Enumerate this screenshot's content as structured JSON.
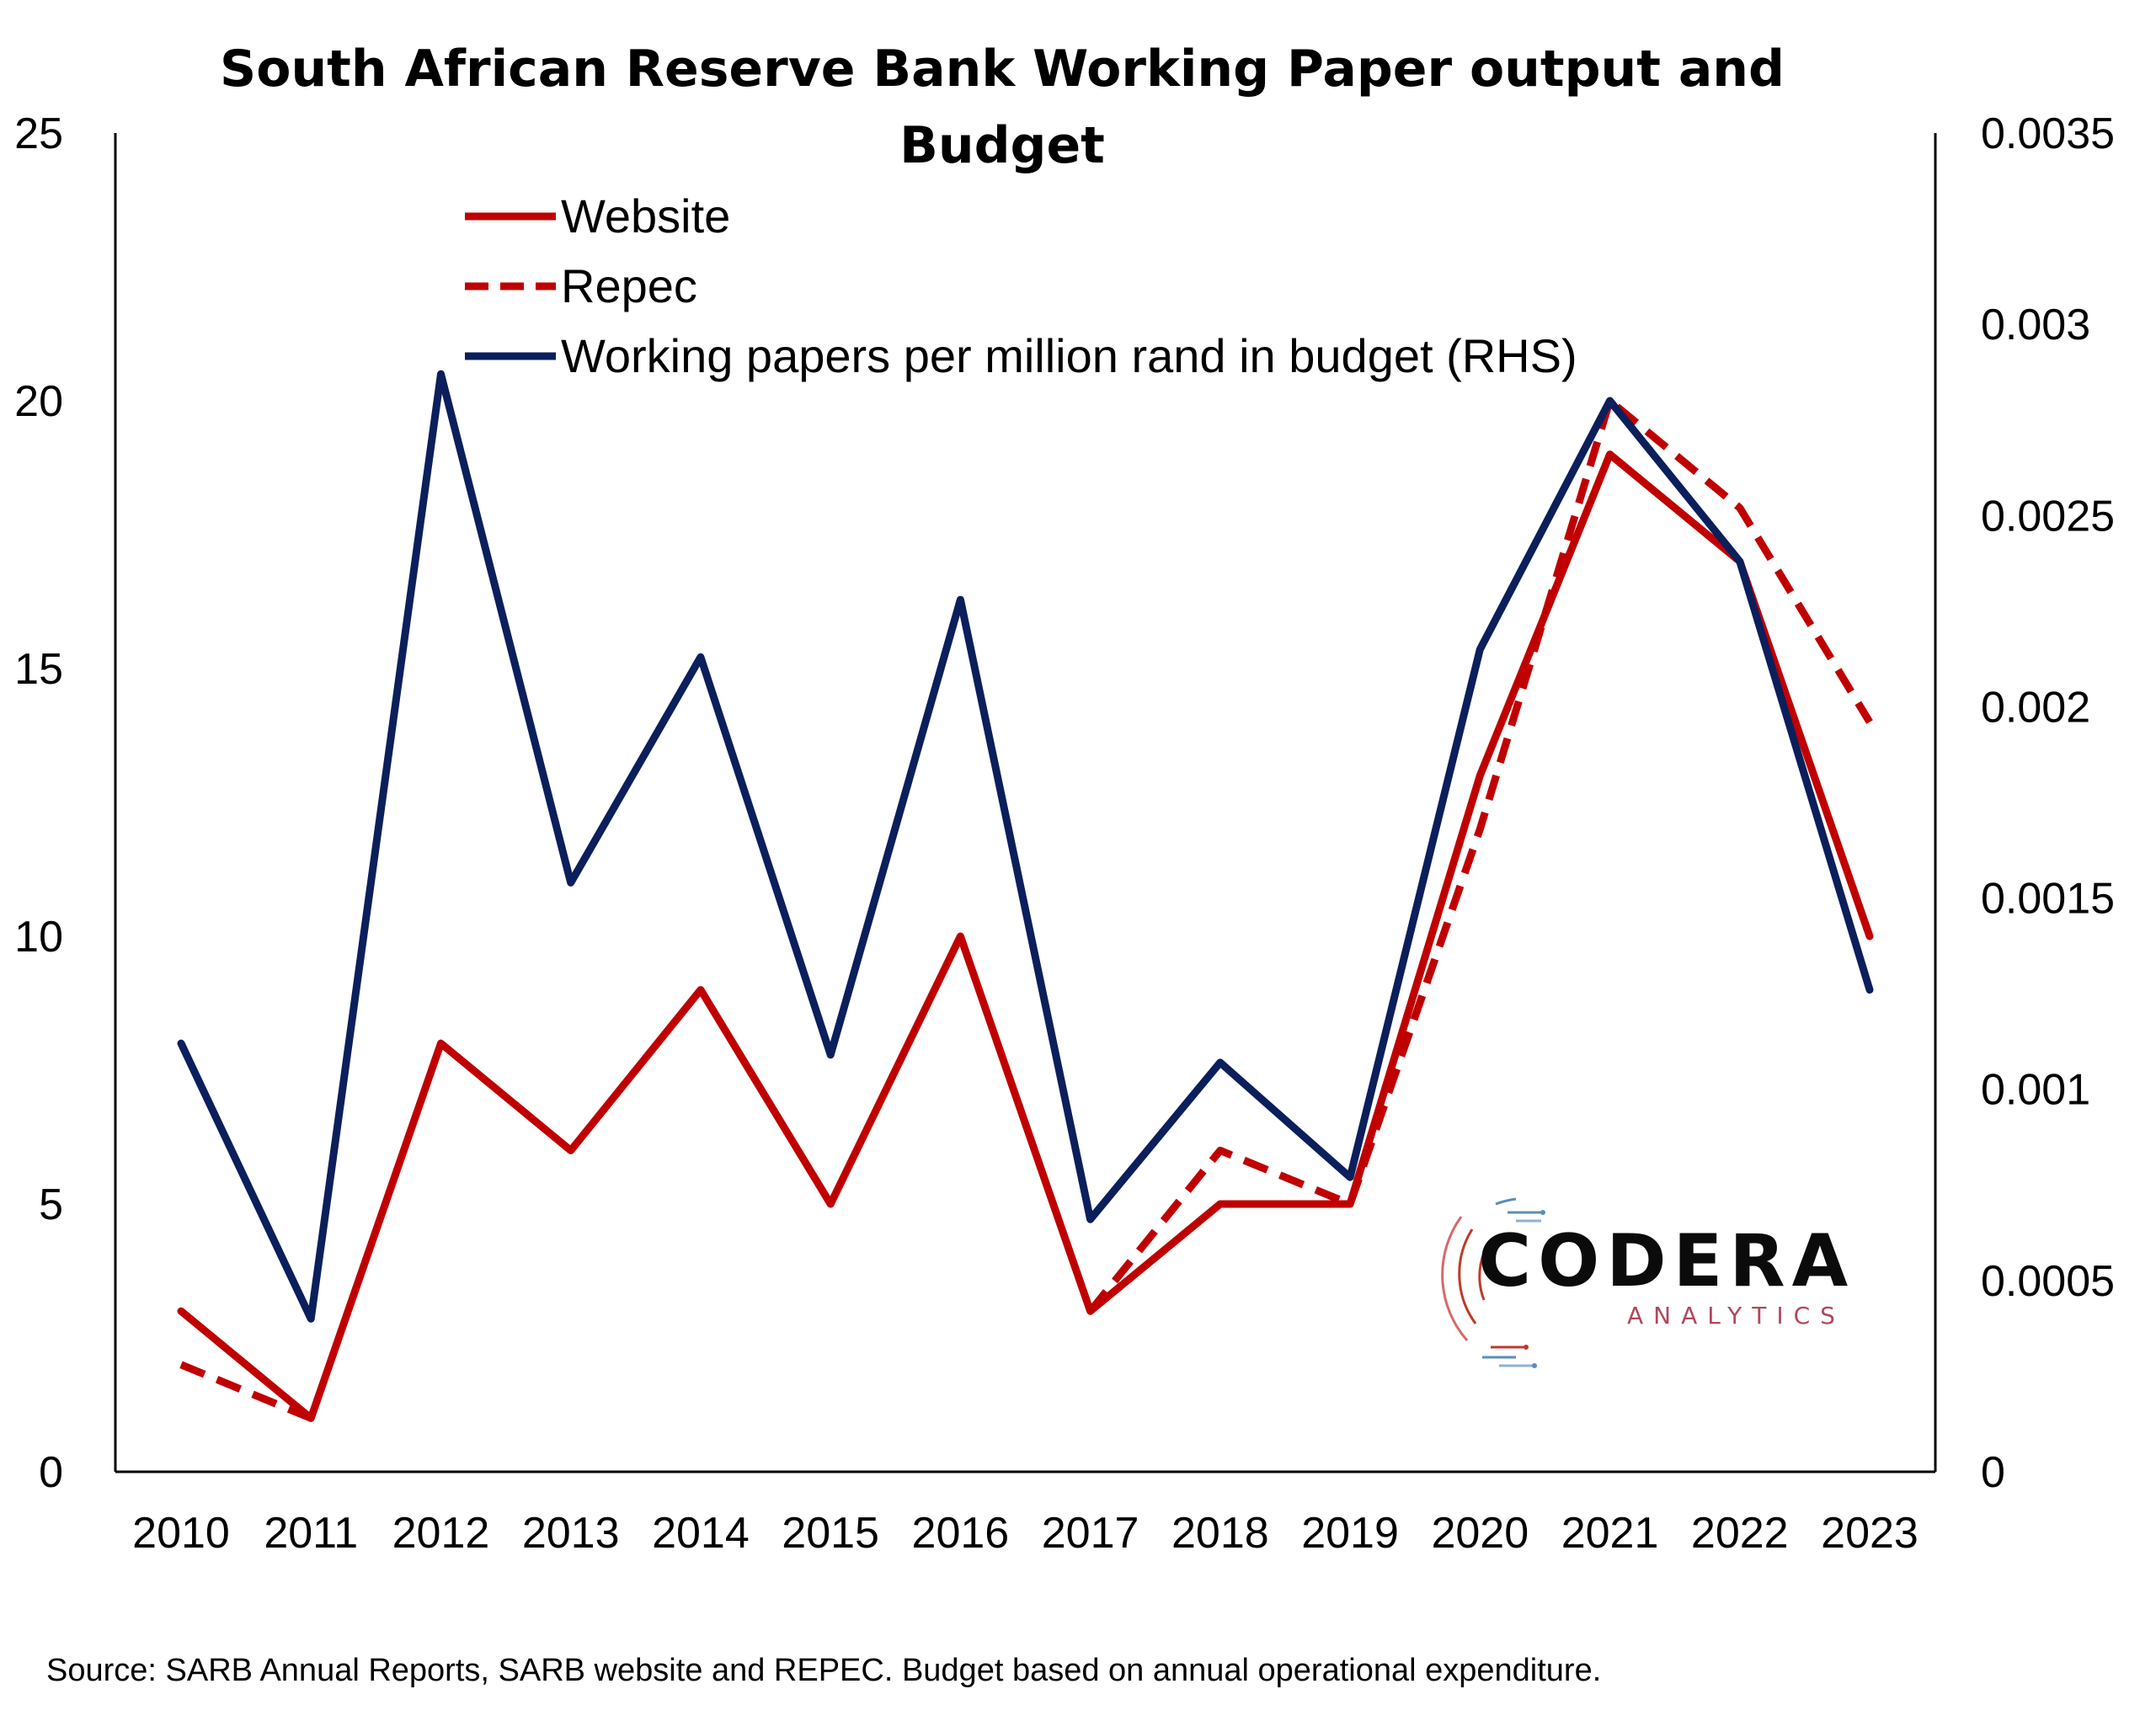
{
  "chart_data": {
    "type": "line",
    "title_lines": [
      "South African Reserve Bank Working Paper output and",
      "Budget"
    ],
    "categories": [
      "2010",
      "2011",
      "2012",
      "2013",
      "2014",
      "2015",
      "2016",
      "2017",
      "2018",
      "2019",
      "2020",
      "2021",
      "2022",
      "2023"
    ],
    "y_left": {
      "ylim": [
        0,
        25
      ],
      "ticks": [
        "0",
        "5",
        "10",
        "15",
        "20",
        "25"
      ],
      "tick_values": [
        0,
        5,
        10,
        15,
        20,
        25
      ]
    },
    "y_right": {
      "ylim": [
        0,
        0.0035
      ],
      "ticks": [
        "0",
        "0.0005",
        "0.001",
        "0.0015",
        "0.002",
        "0.0025",
        "0.003",
        "0.0035"
      ],
      "tick_values": [
        0,
        0.0005,
        0.001,
        0.0015,
        0.002,
        0.0025,
        0.003,
        0.0035
      ]
    },
    "series": [
      {
        "name": "Website",
        "axis": "left",
        "color": "#c00000",
        "dashed": false,
        "values": [
          3,
          1,
          8,
          6,
          9,
          5,
          10,
          3,
          5,
          5,
          13,
          19,
          17,
          10
        ]
      },
      {
        "name": "Repec",
        "axis": "left",
        "color": "#c00000",
        "dashed": true,
        "values": [
          2,
          1,
          null,
          null,
          null,
          null,
          null,
          3,
          6,
          5,
          12,
          20,
          18,
          14
        ]
      },
      {
        "name": "Working papers per million rand in budget (RHS)",
        "axis": "right",
        "color": "#0b1f5c",
        "dashed": false,
        "values": [
          0.00112,
          0.0004,
          0.00287,
          0.00154,
          0.00213,
          0.00109,
          0.00228,
          0.00066,
          0.00107,
          0.00077,
          0.00215,
          0.0028,
          0.00238,
          0.00126
        ]
      }
    ],
    "legend_position": "top-left",
    "grid": false,
    "source": "Source: SARB Annual Reports, SARB website and REPEC. Budget based on annual operational expenditure."
  },
  "logo": {
    "name": "CODERA",
    "tagline": "ANALYTICS",
    "colors": {
      "main": "#0b0b0b",
      "red": "#c0392b",
      "blue": "#5b8db8"
    }
  }
}
